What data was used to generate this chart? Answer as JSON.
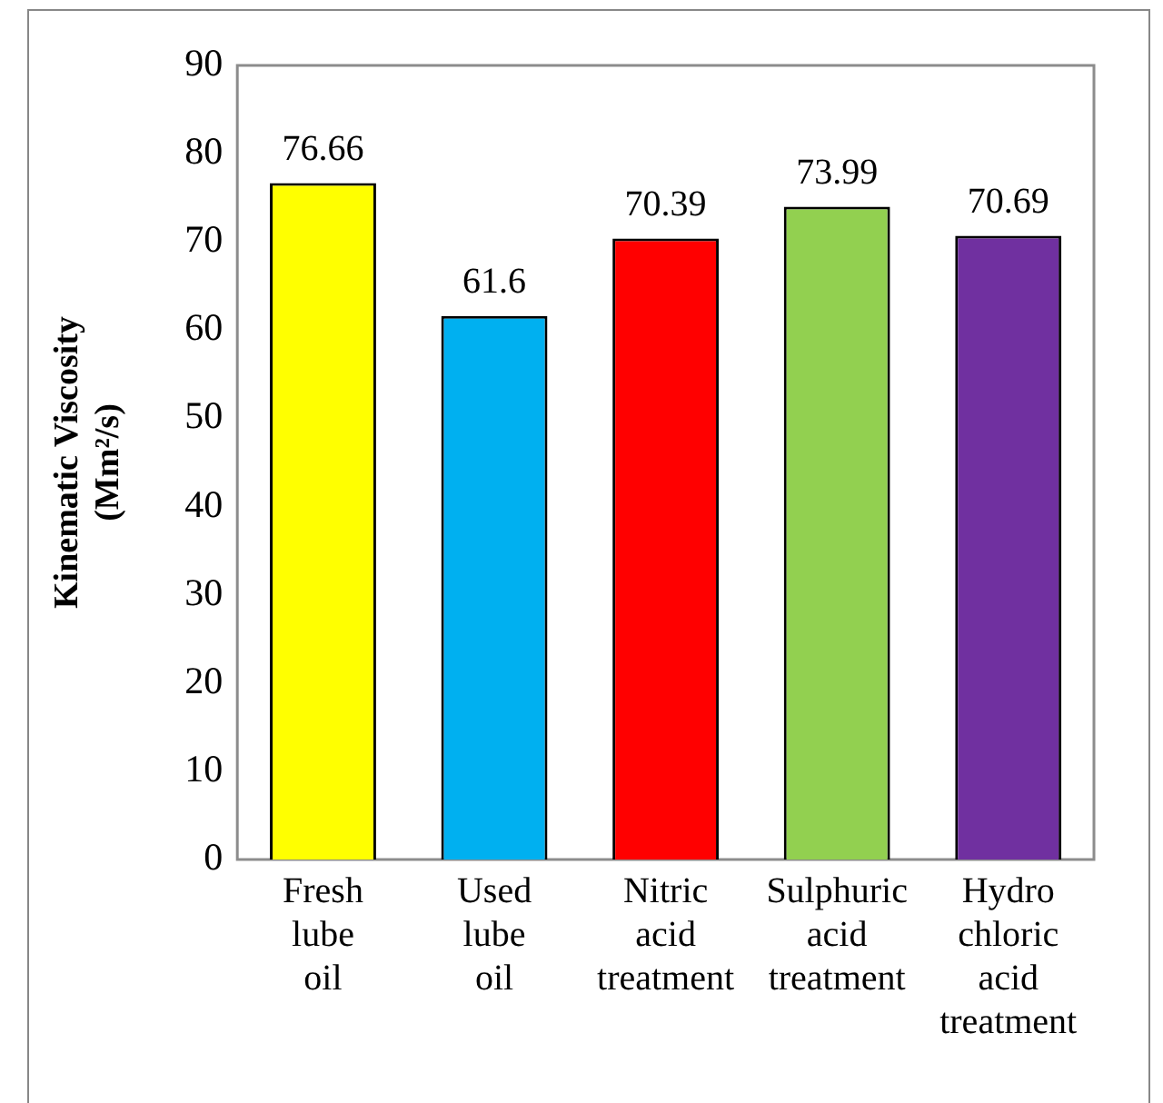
{
  "chart_data": {
    "type": "bar",
    "ylabel": "Kinematic Viscosity (Mm²/s)",
    "categories": [
      "Fresh lube oil",
      "Used lube oil",
      "Nitric acid treatment",
      "Sulphuric acid treatment",
      "Hydro chloric acid treatment"
    ],
    "values": [
      76.66,
      61.6,
      70.39,
      73.99,
      70.69
    ],
    "colors": [
      "#ffff00",
      "#00b0f0",
      "#ff0000",
      "#92d050",
      "#7030a0"
    ],
    "ylim": [
      0,
      90
    ],
    "yticks": [
      0,
      10,
      20,
      30,
      40,
      50,
      60,
      70,
      80,
      90
    ],
    "grid": false,
    "legend": false,
    "data_labels": true
  }
}
